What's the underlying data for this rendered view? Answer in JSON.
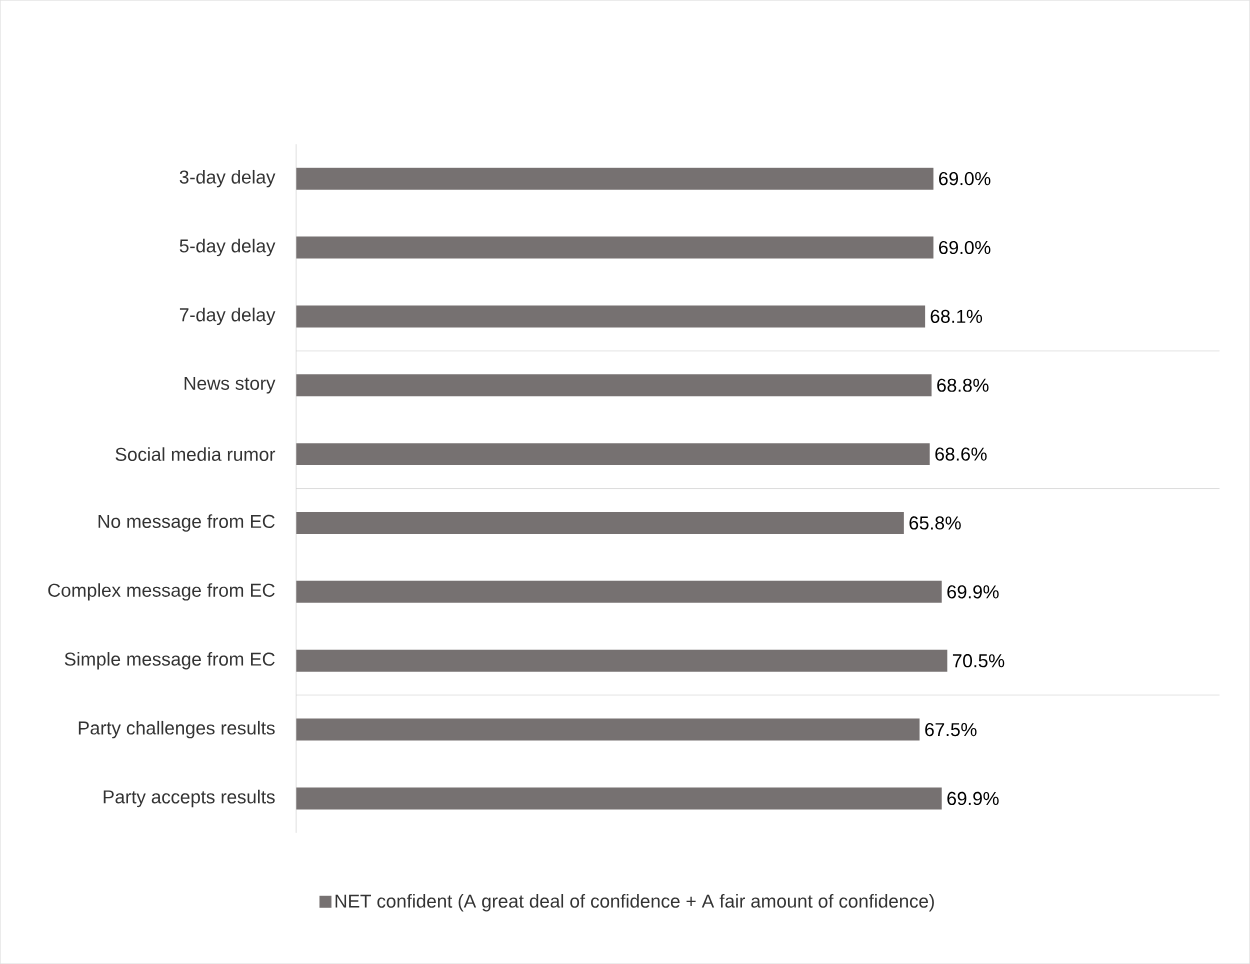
{
  "chart_data": {
    "type": "bar",
    "orientation": "horizontal",
    "categories": [
      "3-day delay",
      "5-day delay",
      "7-day delay",
      "News story",
      "Social media rumor",
      "No message from EC",
      "Complex message from EC",
      "Simple message from EC",
      "Party challenges results",
      "Party accepts results"
    ],
    "series": [
      {
        "name": "NET confident (A great deal of confidence + A fair amount of confidence)",
        "color": "#767171",
        "values": [
          69.0,
          69.0,
          68.1,
          68.8,
          68.6,
          65.8,
          69.9,
          70.5,
          67.5,
          69.9
        ],
        "value_labels": [
          "69.0%",
          "69.0%",
          "68.1%",
          "68.8%",
          "68.6%",
          "65.8%",
          "69.9%",
          "70.5%",
          "67.5%",
          "69.9%"
        ]
      }
    ],
    "xlim": [
      0,
      100
    ],
    "legend": "bottom"
  }
}
